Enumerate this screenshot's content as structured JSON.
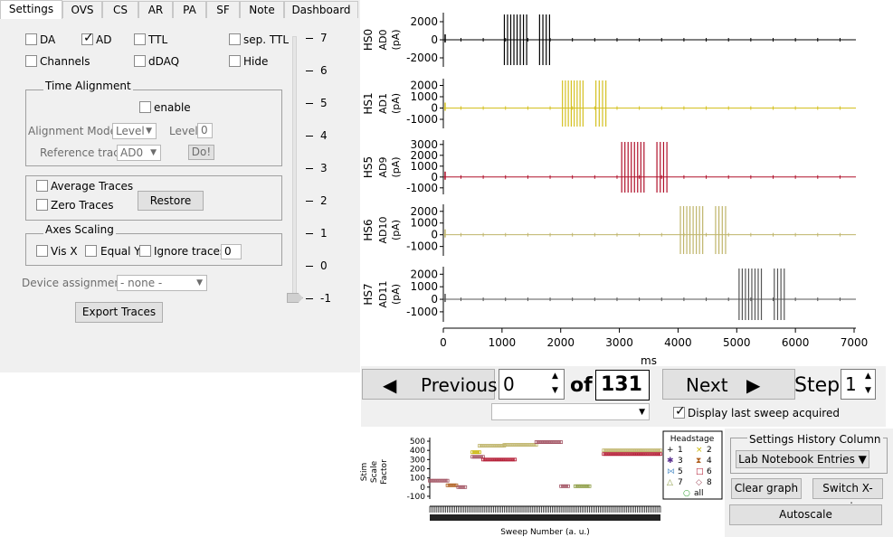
{
  "tabs": [
    "Settings",
    "OVS",
    "CS",
    "AR",
    "PA",
    "SF",
    "Note",
    "Dashboard"
  ],
  "active_tab": "Settings",
  "display_options": [
    {
      "label": "DA",
      "checked": false
    },
    {
      "label": "AD",
      "checked": true
    },
    {
      "label": "TTL",
      "checked": false
    },
    {
      "label": "sep. TTL",
      "checked": false
    },
    {
      "label": "Channels",
      "checked": false
    },
    {
      "label": "dDAQ",
      "checked": false
    },
    {
      "label": "Hide",
      "checked": false
    }
  ],
  "time_alignment": {
    "title": "Time Alignment",
    "enable_label": "enable",
    "mode_label": "Alignment Mode",
    "mode_value": "Level",
    "level_label": "Level",
    "level_value": "0",
    "reference_label": "Reference trace",
    "reference_value": "AD0",
    "do_label": "Do!"
  },
  "averaging": {
    "average_label": "Average Traces",
    "zero_label": "Zero Traces",
    "restore_label": "Restore"
  },
  "axes_scaling": {
    "title": "Axes Scaling",
    "visx_label": "Vis X",
    "equaly_label": "Equal Y",
    "ignore_label": "Ignore traces",
    "ignore_value": "0"
  },
  "device": {
    "label": "Device assignment:",
    "value": "- none -"
  },
  "export_label": "Export Traces",
  "slider_ticks": [
    "7",
    "6",
    "5",
    "4",
    "3",
    "2",
    "1",
    "0",
    "-1"
  ],
  "slider_value": -1,
  "traces": {
    "x_label": "ms",
    "x_ticks": [
      "0",
      "1000",
      "2000",
      "3000",
      "4000",
      "5000",
      "6000",
      "7000"
    ],
    "x_range": [
      0,
      7000
    ],
    "unit": "(pA)",
    "panels": [
      {
        "hs": "HS0",
        "ad": "AD0",
        "color": "#000000",
        "ticks": [
          "2000",
          "0",
          "-2000"
        ],
        "range": [
          -3000,
          3000
        ],
        "bursts": [
          [
            1040,
            1420,
            8
          ],
          [
            1640,
            1810,
            4
          ]
        ]
      },
      {
        "hs": "HS1",
        "ad": "AD1",
        "color": "#d4c020",
        "ticks": [
          "2000",
          "1000",
          "0",
          "-1000"
        ],
        "range": [
          -1800,
          2600
        ],
        "bursts": [
          [
            2030,
            2380,
            8
          ],
          [
            2600,
            2770,
            4
          ]
        ]
      },
      {
        "hs": "HS5",
        "ad": "AD9",
        "color": "#b0102a",
        "ticks": [
          "3000",
          "2000",
          "1000",
          "0",
          "-1000"
        ],
        "range": [
          -1600,
          3400
        ],
        "bursts": [
          [
            3040,
            3420,
            8
          ],
          [
            3640,
            3810,
            4
          ]
        ]
      },
      {
        "hs": "HS6",
        "ad": "AD10",
        "color": "#bfb46a",
        "ticks": [
          "2000",
          "1000",
          "0",
          "-1000"
        ],
        "range": [
          -1800,
          2600
        ],
        "bursts": [
          [
            4040,
            4420,
            8
          ],
          [
            4640,
            4810,
            4
          ]
        ]
      },
      {
        "hs": "HS7",
        "ad": "AD11",
        "color": "#555555",
        "ticks": [
          "2000",
          "1000",
          "0",
          "-1000"
        ],
        "range": [
          -1800,
          2600
        ],
        "bursts": [
          [
            5040,
            5420,
            8
          ],
          [
            5640,
            5810,
            4
          ]
        ]
      }
    ]
  },
  "nav": {
    "previous_label": "Previous",
    "sweep_value": "0",
    "of_label": "of",
    "total": "131",
    "next_label": "Next",
    "step_label": "Step",
    "step_value": "1",
    "display_last_label": "Display last sweep acquired",
    "display_last_checked": true
  },
  "stim_chart": {
    "type": "scatter",
    "ylabel": "Stim Scale Factor",
    "xlabel": "Sweep Number (a. u.)",
    "y_ticks": [
      "500",
      "400",
      "300",
      "200",
      "100",
      "0",
      "-100"
    ],
    "ylim": [
      -130,
      520
    ],
    "xlim": [
      0,
      130
    ],
    "series": [
      {
        "name": "1",
        "symbol": "+",
        "color": "#000000"
      },
      {
        "name": "2",
        "symbol": "×",
        "color": "#c8b400"
      },
      {
        "name": "3",
        "symbol": "✱",
        "color": "#5a3090"
      },
      {
        "name": "4",
        "symbol": "⧗",
        "color": "#b06020"
      },
      {
        "name": "5",
        "symbol": "⋈",
        "color": "#6aa0d0"
      },
      {
        "name": "6",
        "symbol": "□",
        "color": "#b0102a"
      },
      {
        "name": "7",
        "symbol": "△",
        "color": "#8a9a40"
      },
      {
        "name": "8",
        "symbol": "◇",
        "color": "#a05060"
      },
      {
        "name": "all",
        "symbol": "○",
        "color": "#30a030"
      }
    ],
    "segments": [
      {
        "x0": 0,
        "x1": 10,
        "y": 70,
        "color": "#a05060"
      },
      {
        "x0": 10,
        "x1": 15,
        "y": 20,
        "color": "#b06020"
      },
      {
        "x0": 16,
        "x1": 20,
        "y": 0,
        "color": "#a05060"
      },
      {
        "x0": 24,
        "x1": 28,
        "y": 380,
        "color": "#c8b400"
      },
      {
        "x0": 28,
        "x1": 42,
        "y": 450,
        "color": "#bfb46a"
      },
      {
        "x0": 24,
        "x1": 30,
        "y": 330,
        "color": "#a05060"
      },
      {
        "x0": 30,
        "x1": 48,
        "y": 300,
        "color": "#b0102a"
      },
      {
        "x0": 42,
        "x1": 60,
        "y": 460,
        "color": "#bfb46a"
      },
      {
        "x0": 60,
        "x1": 74,
        "y": 490,
        "color": "#a05060"
      },
      {
        "x0": 74,
        "x1": 78,
        "y": 10,
        "color": "#a05060"
      },
      {
        "x0": 82,
        "x1": 90,
        "y": 10,
        "color": "#8a9a40"
      },
      {
        "x0": 98,
        "x1": 130,
        "y": 400,
        "color": "#bfb46a"
      },
      {
        "x0": 98,
        "x1": 130,
        "y": 360,
        "color": "#b0102a"
      }
    ],
    "legend_title": "Headstage"
  },
  "history": {
    "title": "Settings History Column",
    "dropdown_label": "Lab Notebook Entries ▼",
    "clear_label": "Clear graph",
    "switch_label": "Switch X-axis",
    "autoscale_label": "Autoscale"
  }
}
